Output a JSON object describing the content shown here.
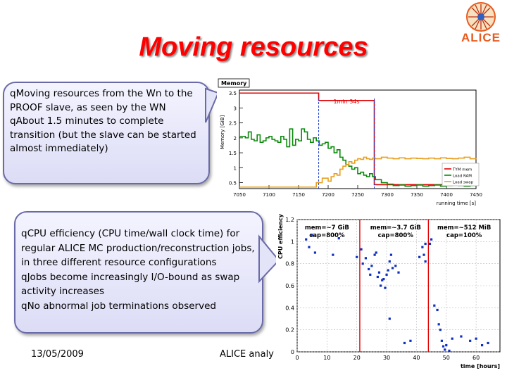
{
  "slide": {
    "title": "Moving resources",
    "logo_text": "ALICE",
    "callout1": {
      "bullets": [
        "Moving resources from the Wn to the PROOF slave, as seen by the WN",
        "About 1.5 minutes to complete transition (but the slave can be started almost immediately)"
      ]
    },
    "callout2": {
      "bullets": [
        "CPU efficiency (CPU time/wall clock time) for regular ALICE MC production/reconstruction jobs, in three different resource configurations",
        "Jobs become increasingly I/O-bound as swap activity increases",
        "No abnormal job terminations observed"
      ]
    },
    "footer": {
      "date": "13/05/2009",
      "center": "ALICE analy"
    },
    "bullet_glyph": "q",
    "colors": {
      "title": "#ff0000",
      "callout_border": "#6a6aa8",
      "logo": "#e85a1e"
    }
  },
  "chart_data": [
    {
      "type": "line",
      "title": "Memory",
      "ylabel": "Memory [GiB]",
      "xlabel": "running time [s]",
      "xlim": [
        7050,
        7450
      ],
      "ylim": [
        0.3,
        3.6
      ],
      "xticks": [
        7050,
        7100,
        7150,
        7200,
        7250,
        7300,
        7350,
        7400,
        7450
      ],
      "yticks": [
        0.5,
        1,
        1.5,
        2,
        2.5,
        3,
        3.5
      ],
      "ytick_labels": [
        "0.5",
        "1",
        "1.5",
        "2",
        "2.5",
        "3",
        "3.5"
      ],
      "annotation": "1min 34s",
      "annotation_span": [
        7184,
        7278
      ],
      "legend_position": "right",
      "series": [
        {
          "name": "TYM mem",
          "color": "#e00000",
          "x": [
            7050,
            7183,
            7184,
            7276,
            7278,
            7450
          ],
          "y": [
            3.5,
            3.5,
            3.25,
            3.25,
            0.43,
            0.43
          ]
        },
        {
          "name": "Load RAM",
          "color": "#0a8a0a",
          "x": [
            7050,
            7060,
            7065,
            7070,
            7075,
            7080,
            7085,
            7090,
            7095,
            7100,
            7105,
            7110,
            7115,
            7120,
            7125,
            7130,
            7135,
            7140,
            7145,
            7150,
            7155,
            7160,
            7165,
            7170,
            7175,
            7180,
            7185,
            7190,
            7195,
            7200,
            7205,
            7210,
            7215,
            7220,
            7225,
            7230,
            7235,
            7240,
            7245,
            7250,
            7255,
            7260,
            7265,
            7270,
            7275,
            7280,
            7290,
            7300,
            7310,
            7320,
            7330,
            7340,
            7350,
            7360,
            7370,
            7380,
            7390,
            7400,
            7410,
            7420,
            7430,
            7440,
            7450
          ],
          "y": [
            2.05,
            2.0,
            2.2,
            1.95,
            1.9,
            2.1,
            1.85,
            1.9,
            2.0,
            2.05,
            1.95,
            1.9,
            1.85,
            2.05,
            1.95,
            1.7,
            2.3,
            1.75,
            1.95,
            1.9,
            2.3,
            2.2,
            1.95,
            1.85,
            2.0,
            1.9,
            1.75,
            1.8,
            1.85,
            1.65,
            1.7,
            1.5,
            1.6,
            1.35,
            1.25,
            1.1,
            1.05,
            0.95,
            1.0,
            0.8,
            0.85,
            0.75,
            0.7,
            0.8,
            0.7,
            0.6,
            0.5,
            0.45,
            0.4,
            0.42,
            0.38,
            0.4,
            0.42,
            0.38,
            0.4,
            0.42,
            0.38,
            0.4,
            0.55,
            0.4,
            0.38,
            0.4,
            0.39
          ]
        },
        {
          "name": "Load swap",
          "color": "#e8a020",
          "x": [
            7050,
            7170,
            7180,
            7190,
            7200,
            7205,
            7210,
            7215,
            7220,
            7225,
            7230,
            7235,
            7240,
            7245,
            7250,
            7255,
            7260,
            7265,
            7270,
            7275,
            7280,
            7290,
            7300,
            7310,
            7320,
            7330,
            7340,
            7350,
            7360,
            7370,
            7380,
            7390,
            7400,
            7410,
            7420,
            7430,
            7440,
            7450
          ],
          "y": [
            0.35,
            0.35,
            0.5,
            0.65,
            0.55,
            0.7,
            0.8,
            0.75,
            0.95,
            1.05,
            1.1,
            1.2,
            1.15,
            1.25,
            1.3,
            1.28,
            1.35,
            1.3,
            1.28,
            1.32,
            1.3,
            1.35,
            1.32,
            1.3,
            1.33,
            1.3,
            1.32,
            1.31,
            1.3,
            1.32,
            1.3,
            1.33,
            1.31,
            1.3,
            1.32,
            1.35,
            1.3,
            1.32
          ]
        }
      ]
    },
    {
      "type": "scatter",
      "xlabel": "time [hours]",
      "ylabel": "CPU efficiency",
      "xlim": [
        0,
        68
      ],
      "ylim": [
        0,
        1.2
      ],
      "xticks": [
        0,
        10,
        20,
        30,
        40,
        50,
        60
      ],
      "yticks": [
        0,
        0.2,
        0.4,
        0.6,
        0.8,
        1,
        1.2
      ],
      "ytick_labels": [
        "0",
        "0.2",
        "0.4",
        "0.6",
        "0.8",
        "1",
        "1.2"
      ],
      "grid": true,
      "vlines": [
        21,
        44
      ],
      "vline_color": "#e00000",
      "regions": [
        {
          "label1": "mem=~7 GiB",
          "label2": "cap=800%",
          "center_x": 10
        },
        {
          "label1": "mem=~3.7 GiB",
          "label2": "cap=800%",
          "center_x": 33
        },
        {
          "label1": "mem=~512 MiB",
          "label2": "cap=100%",
          "center_x": 56
        }
      ],
      "point_color": "#1030c0",
      "points": [
        [
          3,
          1.02
        ],
        [
          4,
          0.95
        ],
        [
          5,
          1.06
        ],
        [
          6,
          0.9
        ],
        [
          12,
          0.88
        ],
        [
          14,
          1.03
        ],
        [
          20,
          0.86
        ],
        [
          21.5,
          0.93
        ],
        [
          22,
          0.8
        ],
        [
          23,
          0.85
        ],
        [
          24,
          0.75
        ],
        [
          24.5,
          0.7
        ],
        [
          25,
          0.78
        ],
        [
          26,
          0.88
        ],
        [
          26.5,
          0.9
        ],
        [
          27,
          0.68
        ],
        [
          27.5,
          0.72
        ],
        [
          28,
          0.6
        ],
        [
          28.5,
          0.65
        ],
        [
          29,
          0.66
        ],
        [
          29.5,
          0.58
        ],
        [
          30,
          0.7
        ],
        [
          30.5,
          0.74
        ],
        [
          31,
          0.82
        ],
        [
          31.5,
          0.88
        ],
        [
          32,
          0.76
        ],
        [
          33,
          0.78
        ],
        [
          34,
          0.72
        ],
        [
          31,
          0.3
        ],
        [
          36,
          0.08
        ],
        [
          38,
          0.1
        ],
        [
          41,
          0.86
        ],
        [
          42,
          0.95
        ],
        [
          43,
          0.98
        ],
        [
          42.5,
          0.88
        ],
        [
          43,
          0.82
        ],
        [
          44.5,
          0.98
        ],
        [
          45,
          1.02
        ],
        [
          46,
          0.42
        ],
        [
          47,
          0.38
        ],
        [
          47.5,
          0.25
        ],
        [
          48,
          0.2
        ],
        [
          48.5,
          0.1
        ],
        [
          49,
          0.05
        ],
        [
          49.5,
          0.02
        ],
        [
          50,
          0.06
        ],
        [
          51,
          0.01
        ],
        [
          52,
          0.12
        ],
        [
          55,
          0.14
        ],
        [
          58,
          0.1
        ],
        [
          60,
          0.12
        ],
        [
          62,
          0.06
        ],
        [
          64,
          0.08
        ]
      ]
    }
  ]
}
